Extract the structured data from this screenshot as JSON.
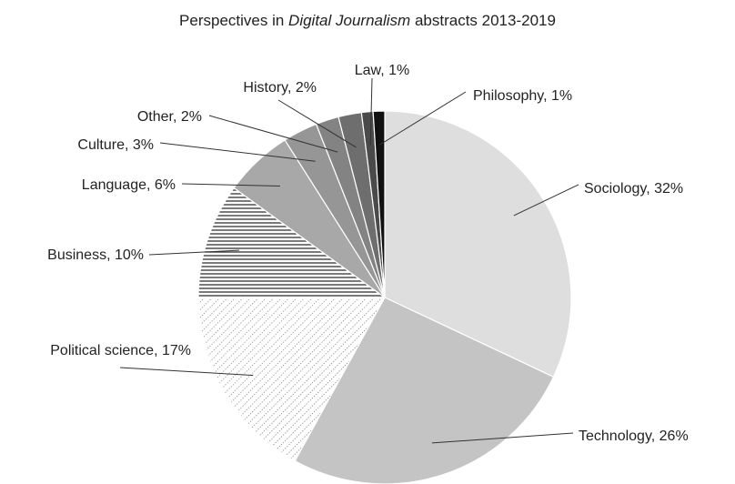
{
  "chart_data": {
    "type": "pie",
    "title": {
      "prefix": "Perspectives in ",
      "emphasis": "Digital Journalism",
      "suffix": " abstracts 2013-2019"
    },
    "slices": [
      {
        "name": "Sociology",
        "value": 32,
        "label": "Sociology, 32%",
        "color": "#dedede",
        "pattern": "solid"
      },
      {
        "name": "Technology",
        "value": 26,
        "label": "Technology, 26%",
        "color": "#c4c4c4",
        "pattern": "solid"
      },
      {
        "name": "Political science",
        "value": 17,
        "label": "Political science, 17%",
        "color": "#ffffff",
        "pattern": "dots"
      },
      {
        "name": "Business",
        "value": 10,
        "label": "Business, 10%",
        "color": "#ffffff",
        "pattern": "hlines"
      },
      {
        "name": "Language",
        "value": 6,
        "label": "Language, 6%",
        "color": "#a8a8a8",
        "pattern": "solid"
      },
      {
        "name": "Culture",
        "value": 3,
        "label": "Culture, 3%",
        "color": "#969696",
        "pattern": "solid"
      },
      {
        "name": "Other",
        "value": 2,
        "label": "Other, 2%",
        "color": "#838383",
        "pattern": "solid"
      },
      {
        "name": "History",
        "value": 2,
        "label": "History, 2%",
        "color": "#6e6e6e",
        "pattern": "solid"
      },
      {
        "name": "Law",
        "value": 1,
        "label": "Law, 1%",
        "color": "#4a4a4a",
        "pattern": "solid"
      },
      {
        "name": "Philosophy",
        "value": 1,
        "label": "Philosophy, 1%",
        "color": "#111111",
        "pattern": "solid"
      }
    ],
    "start": "12 o'clock",
    "direction": "clockwise",
    "legend": "none",
    "labels": "outside with leader lines"
  }
}
